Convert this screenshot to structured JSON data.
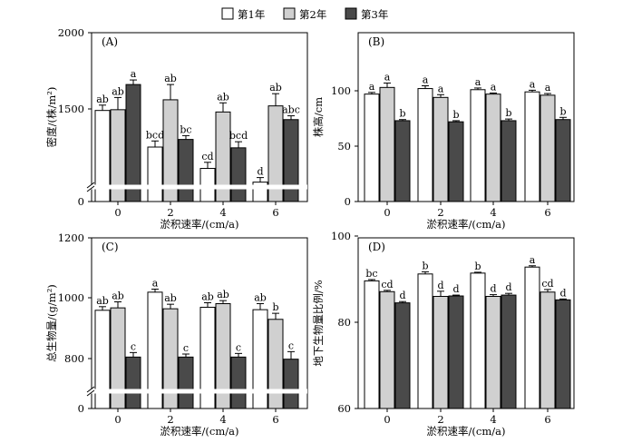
{
  "legend": {
    "placement": "top-center",
    "items": [
      {
        "name": "第1年",
        "color": "#ffffff"
      },
      {
        "name": "第2年",
        "color": "#d0d0d0"
      },
      {
        "name": "第3年",
        "color": "#4a4a4a"
      }
    ]
  },
  "chart_data": [
    {
      "panel": "(A)",
      "type": "bar",
      "xlabel": "淤积速率/(cm/a)",
      "ylabel": "密度/(株/m²)",
      "categories": [
        "0",
        "2",
        "4",
        "6"
      ],
      "y_ticks": [
        0,
        1500,
        2000
      ],
      "axis_break": true,
      "ylim": [
        0,
        2000
      ],
      "series": [
        {
          "name": "第1年",
          "values": [
            1490,
            1250,
            1110,
            1020
          ],
          "errors": [
            35,
            40,
            40,
            30
          ],
          "letters": [
            "ab",
            "bcd",
            "cd",
            "d"
          ]
        },
        {
          "name": "第2年",
          "values": [
            1495,
            1560,
            1480,
            1520
          ],
          "errors": [
            80,
            100,
            60,
            80
          ],
          "letters": [
            "ab",
            "ab",
            "ab",
            "ab"
          ]
        },
        {
          "name": "第3年",
          "values": [
            1660,
            1300,
            1245,
            1430
          ],
          "errors": [
            30,
            25,
            40,
            25
          ],
          "letters": [
            "a",
            "bc",
            "bcd",
            "abc"
          ]
        }
      ]
    },
    {
      "panel": "(B)",
      "type": "bar",
      "xlabel": "淤积速率/(cm/a)",
      "ylabel": "株高/cm",
      "categories": [
        "0",
        "2",
        "4",
        "6"
      ],
      "y_ticks": [
        0,
        50,
        100
      ],
      "axis_break": false,
      "ylim": [
        0,
        115
      ],
      "series": [
        {
          "name": "第1年",
          "values": [
            97,
            102,
            101,
            99
          ],
          "errors": [
            1.5,
            2.5,
            1.5,
            1.5
          ],
          "letters": [
            "a",
            "a",
            "a",
            "a"
          ]
        },
        {
          "name": "第2年",
          "values": [
            103,
            94,
            97,
            96
          ],
          "errors": [
            4,
            2.5,
            1,
            1.5
          ],
          "letters": [
            "a",
            "a",
            "a",
            "a"
          ]
        },
        {
          "name": "第3年",
          "values": [
            73,
            72,
            73,
            74
          ],
          "errors": [
            1,
            1,
            1.5,
            2
          ],
          "letters": [
            "b",
            "b",
            "b",
            "b"
          ]
        }
      ]
    },
    {
      "panel": "(C)",
      "type": "bar",
      "xlabel": "淤积速率/(cm/a)",
      "ylabel": "总生物量/(g/m²)",
      "categories": [
        "0",
        "2",
        "4",
        "6"
      ],
      "y_ticks": [
        0,
        800,
        1000,
        1200
      ],
      "axis_break": true,
      "ylim": [
        0,
        1200
      ],
      "series": [
        {
          "name": "第1年",
          "values": [
            960,
            1020,
            970,
            962
          ],
          "errors": [
            12,
            10,
            15,
            20
          ],
          "letters": [
            "ab",
            "a",
            "ab",
            "ab"
          ]
        },
        {
          "name": "第2年",
          "values": [
            968,
            965,
            982,
            930
          ],
          "errors": [
            20,
            15,
            10,
            20
          ],
          "letters": [
            "ab",
            "ab",
            "ab",
            "b"
          ]
        },
        {
          "name": "第3年",
          "values": [
            805,
            805,
            805,
            798
          ],
          "errors": [
            15,
            10,
            12,
            25
          ],
          "letters": [
            "c",
            "c",
            "c",
            "c"
          ]
        }
      ]
    },
    {
      "panel": "(D)",
      "type": "bar",
      "xlabel": "淤积速率/(cm/a)",
      "ylabel": "地下生物量比例/%",
      "categories": [
        "0",
        "2",
        "4",
        "6"
      ],
      "y_ticks": [
        60,
        80,
        100
      ],
      "axis_break": false,
      "ylim": [
        60,
        100
      ],
      "series": [
        {
          "name": "第1年",
          "values": [
            89.6,
            91.2,
            91.4,
            92.8
          ],
          "errors": [
            0.3,
            0.5,
            0.2,
            0.3
          ],
          "letters": [
            "bc",
            "b",
            "b",
            "a"
          ]
        },
        {
          "name": "第2年",
          "values": [
            87.1,
            86.0,
            86.0,
            87.0
          ],
          "errors": [
            0.3,
            1.2,
            0.4,
            0.6
          ],
          "letters": [
            "cd",
            "d",
            "d",
            "cd"
          ]
        },
        {
          "name": "第3年",
          "values": [
            84.5,
            86.1,
            86.3,
            85.2
          ],
          "errors": [
            0.3,
            0.2,
            0.4,
            0.2
          ],
          "letters": [
            "d",
            "d",
            "d",
            "d"
          ]
        }
      ]
    }
  ]
}
